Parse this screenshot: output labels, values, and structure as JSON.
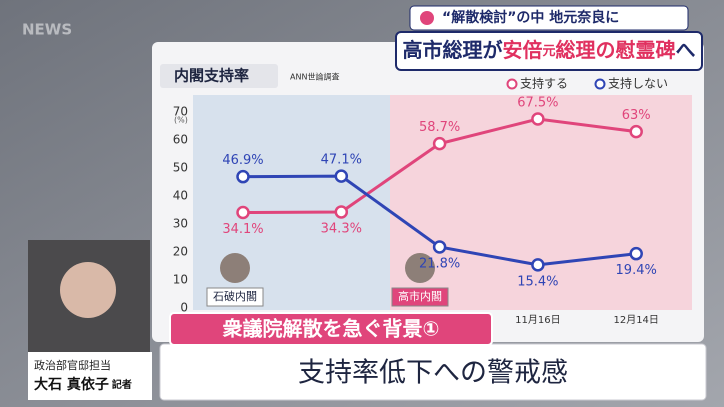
{
  "logo": "NEWS",
  "kicker": "“解散検討”の中 地元奈良に",
  "headline": [
    "高市総理が",
    "安倍",
    "元",
    "総理の慰霊碑",
    "へ"
  ],
  "lower_third": {
    "label": "衆議院解散を急ぐ背景①",
    "caption": "支持率低下への警戒感"
  },
  "reporter": {
    "role": "政治部官邸担当",
    "name": "大石 真依子",
    "title": "記者"
  },
  "chart_data": {
    "type": "line",
    "title": "内閣支持率",
    "source": "ANN世論調査",
    "y_unit": "(%)",
    "categories": [
      null,
      null,
      null,
      "11月16日",
      "12月14日"
    ],
    "series": [
      {
        "name": "支持する",
        "color": "#e0457b",
        "values": [
          34.1,
          34.3,
          58.7,
          67.5,
          63
        ],
        "value_labels": [
          "34.1%",
          "34.3%",
          "58.7%",
          "67.5%",
          "63%"
        ]
      },
      {
        "name": "支持しない",
        "color": "#2f45b5",
        "values": [
          46.9,
          47.1,
          21.8,
          15.4,
          19.4
        ],
        "value_labels": [
          "46.9%",
          "47.1%",
          "21.8%",
          "15.4%",
          "19.4%"
        ]
      }
    ],
    "annotations": [
      "石破内閣",
      "高市内閣"
    ],
    "ylim": [
      0,
      70
    ],
    "yticks": [
      0,
      10,
      20,
      30,
      40,
      50,
      60,
      70
    ],
    "grid": false,
    "legend": "top-right"
  }
}
